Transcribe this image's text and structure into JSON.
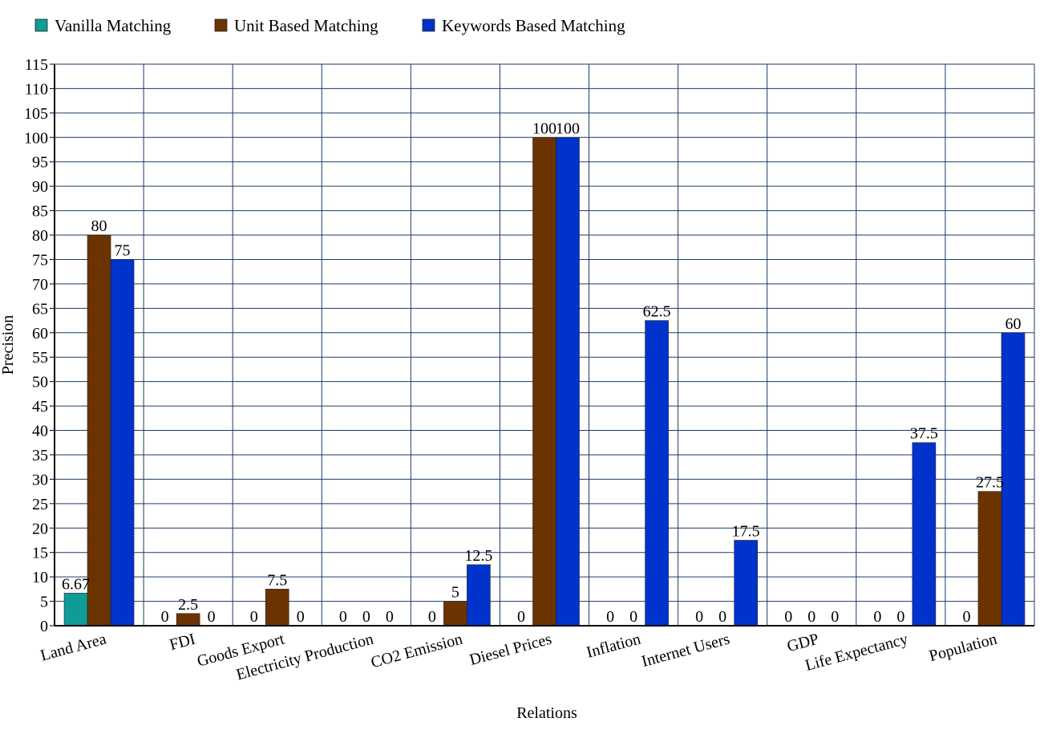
{
  "chart_data": {
    "type": "bar",
    "title": "",
    "xlabel": "Relations",
    "ylabel": "Precision",
    "ylim": [
      0,
      115
    ],
    "ytick_step": 5,
    "grid": true,
    "legend_position": "top-left",
    "categories": [
      "Land Area",
      "FDI",
      "Goods Export",
      "Electricity Production",
      "CO2 Emission",
      "Diesel Prices",
      "Inflation",
      "Internet Users",
      "GDP",
      "Life Expectancy",
      "Population"
    ],
    "series": [
      {
        "name": "Vanilla Matching",
        "color": "#0f9b96",
        "values": [
          6.67,
          0,
          0,
          0,
          0,
          0,
          0,
          0,
          0,
          0,
          0
        ],
        "labels": [
          "6.67",
          "0",
          "0",
          "0",
          "0",
          "0",
          "0",
          "0",
          "0",
          "0",
          "0"
        ]
      },
      {
        "name": "Unit Based Matching",
        "color": "#6b3300",
        "values": [
          80,
          2.5,
          7.5,
          0,
          5,
          100,
          0,
          0,
          0,
          0,
          27.5
        ],
        "labels": [
          "80",
          "2.5",
          "7.5",
          "0",
          "5",
          "100",
          "0",
          "0",
          "0",
          "0",
          "27.5"
        ]
      },
      {
        "name": "Keywords Based Matching",
        "color": "#0033cc",
        "values": [
          75,
          0,
          0,
          0,
          12.5,
          100,
          62.5,
          17.5,
          0,
          37.5,
          60
        ],
        "labels": [
          "75",
          "0",
          "0",
          "0",
          "12.5",
          "100",
          "62.5",
          "17.5",
          "0",
          "37.5",
          "60"
        ]
      }
    ]
  }
}
